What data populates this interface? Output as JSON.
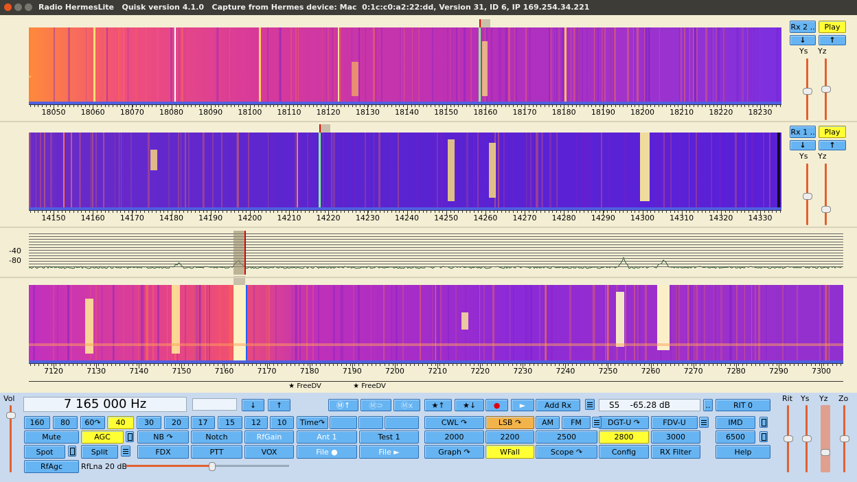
{
  "title_bar": {
    "title": "Radio HermesLite   Quisk version 4.1.0   Capture from Hermes device: Mac  0:1c:c0:a2:22:dd, Version 31, ID 6, IP 169.254.34.221"
  },
  "receivers": [
    {
      "rx": "Rx 2 ..",
      "play": "Play",
      "down": "↓",
      "up": "↑",
      "ys": "Ys",
      "yz": "Yz",
      "freq_labels": [
        18050,
        18060,
        18070,
        18080,
        18090,
        18100,
        18110,
        18120,
        18130,
        18140,
        18150,
        18160,
        18170,
        18180,
        18190,
        18200,
        18210,
        18220,
        18230
      ]
    },
    {
      "rx": "Rx 1 ..",
      "play": "Play",
      "down": "↓",
      "up": "↑",
      "ys": "Ys",
      "yz": "Yz",
      "freq_labels": [
        14150,
        14160,
        14170,
        14180,
        14190,
        14200,
        14210,
        14220,
        14230,
        14240,
        14250,
        14260,
        14270,
        14280,
        14290,
        14300,
        14310,
        14320,
        14330
      ]
    }
  ],
  "main": {
    "graph_labels": [
      -40,
      -80
    ],
    "freq_labels": [
      7120,
      7130,
      7140,
      7150,
      7160,
      7170,
      7180,
      7190,
      7200,
      7210,
      7220,
      7230,
      7240,
      7250,
      7260,
      7270,
      7280,
      7290,
      7300
    ],
    "markers": [
      "★ FreeDV",
      "★ FreeDV"
    ]
  },
  "controls": {
    "vol": "Vol",
    "frequency": "7 165 000 Hz",
    "rows": [
      [
        "↓",
        "↑",
        "Ⓜ↑",
        "Ⓜ⊃",
        "Ⓜx",
        "★↑",
        "★↓",
        "●",
        "►",
        "Add Rx",
        "S5    -65.28 dB",
        "..",
        "RIT 0"
      ],
      [
        "160",
        "80",
        "60↷",
        "40",
        "30",
        "20",
        "17",
        "15",
        "12",
        "10",
        "Time↷",
        "CWL    ↷",
        "LSB   ↷",
        "AM",
        "FM",
        "DGT-U  ↷",
        "FDV-U",
        "IMD"
      ],
      [
        "Mute",
        "AGC",
        "NB    ↷",
        "Notch",
        "RfGain",
        "Ant 1",
        "Test 1",
        "2000",
        "2200",
        "2500",
        "2800",
        "3000",
        "6500"
      ],
      [
        "Spot",
        "Split",
        "FDX",
        "PTT",
        "VOX",
        "File ●",
        "File ►",
        "Graph    ↷",
        "WFall",
        "Scope      ↷",
        "Config",
        "RX Filter",
        "Help"
      ],
      [
        "RfAgc"
      ]
    ],
    "rflna": "RfLna 20 dB",
    "sliders": [
      "Rit",
      "Ys",
      "Yz",
      "Zo"
    ]
  }
}
